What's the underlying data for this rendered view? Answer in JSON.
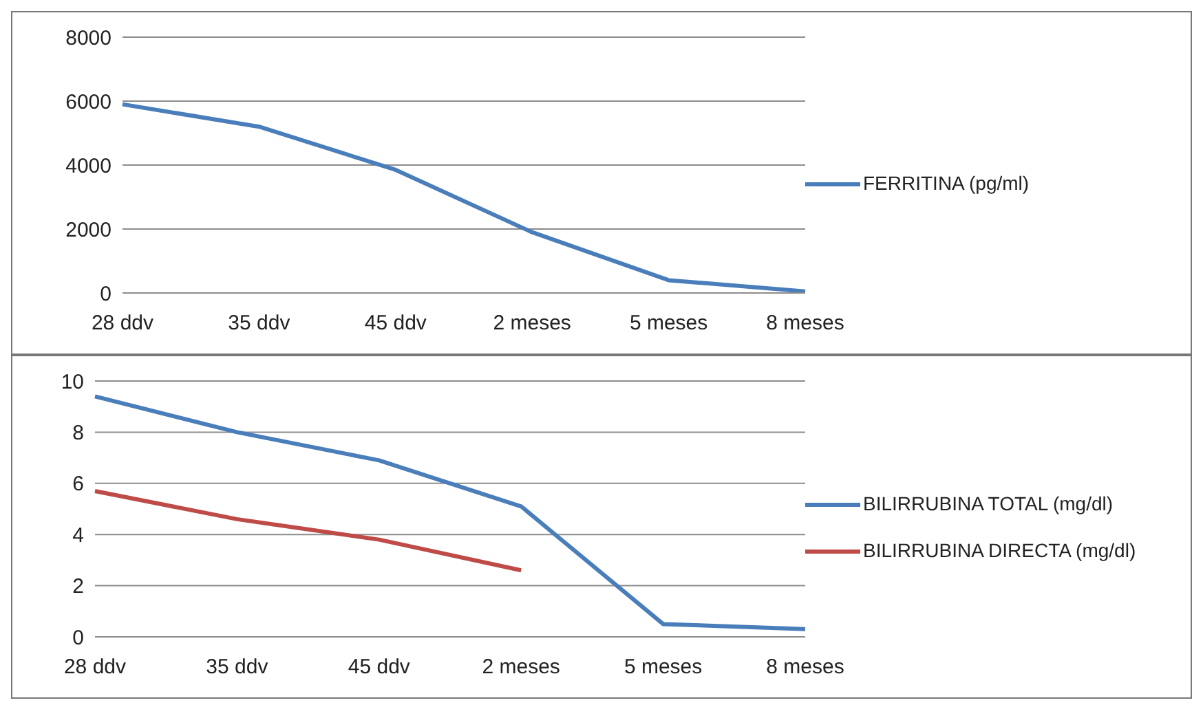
{
  "chart_data": [
    {
      "type": "line",
      "categories": [
        "28 ddv",
        "35 ddv",
        "45 ddv",
        "2 meses",
        "5 meses",
        "8 meses"
      ],
      "series": [
        {
          "name": "FERRITINA (pg/ml)",
          "color": "#4a7ebb",
          "values": [
            5900,
            5200,
            3850,
            1900,
            400,
            50
          ]
        }
      ],
      "ylim": [
        0,
        8000
      ],
      "yticks": [
        0,
        2000,
        4000,
        6000,
        8000
      ],
      "grid": "y",
      "legend": "right",
      "marker": "none"
    },
    {
      "type": "line",
      "categories": [
        "28 ddv",
        "35 ddv",
        "45 ddv",
        "2 meses",
        "5 meses",
        "8 meses"
      ],
      "series": [
        {
          "name": "BILIRRUBINA TOTAL (mg/dl)",
          "color": "#4a7ebb",
          "values": [
            9.4,
            8.0,
            6.9,
            5.1,
            0.5,
            0.3
          ]
        },
        {
          "name": "BILIRRUBINA DIRECTA (mg/dl)",
          "color": "#be4b48",
          "values": [
            5.7,
            4.6,
            3.8,
            2.6,
            null,
            null
          ]
        }
      ],
      "ylim": [
        0,
        10
      ],
      "yticks": [
        0,
        2,
        4,
        6,
        8,
        10
      ],
      "grid": "y",
      "legend": "right",
      "marker": "none"
    }
  ]
}
